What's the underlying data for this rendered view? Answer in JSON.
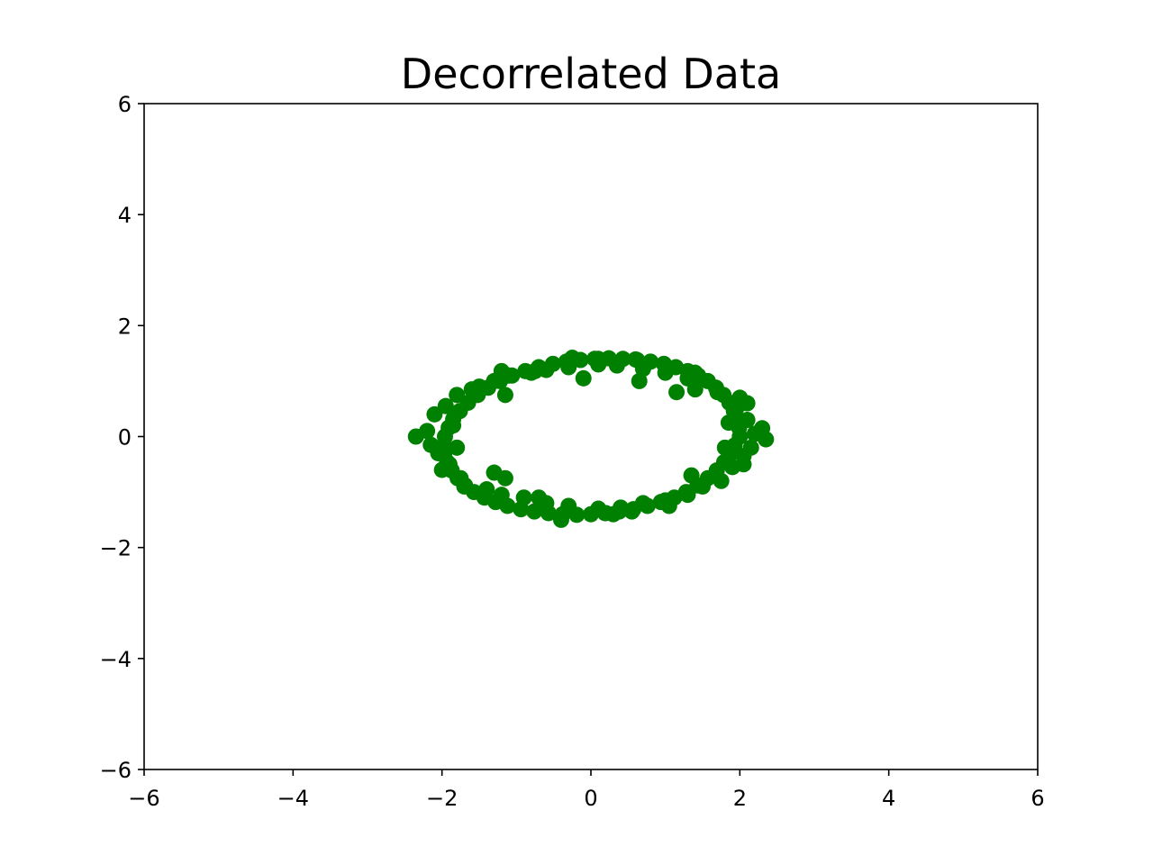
{
  "chart_data": {
    "type": "scatter",
    "title": "Decorrelated Data",
    "xlabel": "",
    "ylabel": "",
    "xlim": [
      -6,
      6
    ],
    "ylim": [
      -6,
      6
    ],
    "xticks": [
      -6,
      -4,
      -2,
      0,
      2,
      4,
      6
    ],
    "yticks": [
      -6,
      -4,
      -2,
      0,
      2,
      4,
      6
    ],
    "xtick_labels": [
      "−6",
      "−4",
      "−2",
      "0",
      "2",
      "4",
      "6"
    ],
    "ytick_labels": [
      "−6",
      "−4",
      "−2",
      "0",
      "2",
      "4",
      "6"
    ],
    "grid": false,
    "marker_color": "#008000",
    "series": [
      {
        "points": [
          [
            2.0,
            0.0
          ],
          [
            1.99,
            0.16
          ],
          [
            1.97,
            0.31
          ],
          [
            1.92,
            0.46
          ],
          [
            1.86,
            0.61
          ],
          [
            1.78,
            0.75
          ],
          [
            1.68,
            0.88
          ],
          [
            1.57,
            1.0
          ],
          [
            1.44,
            1.1
          ],
          [
            1.3,
            1.18
          ],
          [
            1.14,
            1.25
          ],
          [
            0.98,
            1.31
          ],
          [
            0.8,
            1.35
          ],
          [
            0.62,
            1.38
          ],
          [
            0.43,
            1.4
          ],
          [
            0.24,
            1.41
          ],
          [
            0.05,
            1.4
          ],
          [
            -0.14,
            1.38
          ],
          [
            -0.33,
            1.35
          ],
          [
            -0.51,
            1.31
          ],
          [
            -0.7,
            1.25
          ],
          [
            -0.88,
            1.18
          ],
          [
            -1.06,
            1.1
          ],
          [
            -1.22,
            1.0
          ],
          [
            -1.38,
            0.88
          ],
          [
            -1.52,
            0.75
          ],
          [
            -1.65,
            0.61
          ],
          [
            -1.76,
            0.46
          ],
          [
            -1.85,
            0.31
          ],
          [
            -1.91,
            0.16
          ],
          [
            -1.96,
            0.0
          ],
          [
            -1.98,
            -0.16
          ],
          [
            -1.97,
            -0.31
          ],
          [
            -1.93,
            -0.46
          ],
          [
            -1.87,
            -0.61
          ],
          [
            -1.79,
            -0.75
          ],
          [
            -1.69,
            -0.88
          ],
          [
            -1.57,
            -1.0
          ],
          [
            -1.43,
            -1.1
          ],
          [
            -1.28,
            -1.18
          ],
          [
            -1.12,
            -1.25
          ],
          [
            -0.94,
            -1.31
          ],
          [
            -0.76,
            -1.35
          ],
          [
            -0.57,
            -1.38
          ],
          [
            -0.38,
            -1.4
          ],
          [
            -0.19,
            -1.41
          ],
          [
            0.0,
            -1.4
          ],
          [
            0.19,
            -1.38
          ],
          [
            0.38,
            -1.35
          ],
          [
            0.57,
            -1.31
          ],
          [
            0.76,
            -1.25
          ],
          [
            0.94,
            -1.18
          ],
          [
            1.12,
            -1.1
          ],
          [
            1.28,
            -1.0
          ],
          [
            1.43,
            -0.88
          ],
          [
            1.57,
            -0.75
          ],
          [
            1.69,
            -0.61
          ],
          [
            1.79,
            -0.46
          ],
          [
            1.87,
            -0.31
          ],
          [
            1.93,
            -0.16
          ],
          [
            2.2,
            0.05
          ],
          [
            2.1,
            0.3
          ],
          [
            2.05,
            -0.35
          ],
          [
            2.15,
            -0.2
          ],
          [
            1.95,
            0.5
          ],
          [
            1.9,
            -0.55
          ],
          [
            2.3,
            0.15
          ],
          [
            2.35,
            -0.05
          ],
          [
            2.1,
            0.6
          ],
          [
            2.05,
            -0.5
          ],
          [
            1.7,
            0.8
          ],
          [
            1.75,
            -0.8
          ],
          [
            1.85,
            0.25
          ],
          [
            1.8,
            -0.2
          ],
          [
            2.0,
            0.7
          ],
          [
            -2.2,
            0.1
          ],
          [
            -2.1,
            0.4
          ],
          [
            -2.05,
            -0.3
          ],
          [
            -2.15,
            -0.15
          ],
          [
            -1.95,
            0.55
          ],
          [
            -1.9,
            -0.5
          ],
          [
            -2.35,
            0.0
          ],
          [
            -2.0,
            -0.6
          ],
          [
            -1.8,
            0.75
          ],
          [
            -1.75,
            -0.75
          ],
          [
            -1.85,
            0.2
          ],
          [
            -1.8,
            -0.2
          ],
          [
            -1.7,
            -0.9
          ],
          [
            -1.6,
            0.85
          ],
          [
            -1.5,
            0.9
          ],
          [
            -1.3,
            1.0
          ],
          [
            -1.1,
            1.1
          ],
          [
            -0.8,
            1.15
          ],
          [
            -0.6,
            1.2
          ],
          [
            -0.3,
            1.25
          ],
          [
            0.1,
            1.3
          ],
          [
            0.35,
            1.28
          ],
          [
            0.7,
            1.22
          ],
          [
            1.0,
            1.15
          ],
          [
            1.3,
            1.05
          ],
          [
            1.4,
            0.85
          ],
          [
            -0.1,
            1.05
          ],
          [
            0.65,
            1.0
          ],
          [
            -1.15,
            0.75
          ],
          [
            1.15,
            0.8
          ],
          [
            -0.25,
            1.42
          ],
          [
            0.1,
            1.4
          ],
          [
            0.6,
            1.39
          ],
          [
            1.4,
            1.15
          ],
          [
            -1.2,
            1.18
          ],
          [
            -0.75,
            1.18
          ],
          [
            -1.4,
            -0.95
          ],
          [
            -1.2,
            -1.05
          ],
          [
            -0.9,
            -1.1
          ],
          [
            -0.6,
            -1.2
          ],
          [
            -0.3,
            -1.25
          ],
          [
            0.1,
            -1.3
          ],
          [
            0.4,
            -1.28
          ],
          [
            0.7,
            -1.2
          ],
          [
            1.0,
            -1.15
          ],
          [
            1.3,
            -1.05
          ],
          [
            1.5,
            -0.9
          ],
          [
            -0.4,
            -1.5
          ],
          [
            0.2,
            -1.38
          ],
          [
            0.3,
            -1.4
          ],
          [
            0.55,
            -1.35
          ],
          [
            -0.7,
            -1.1
          ],
          [
            1.05,
            -1.25
          ],
          [
            -1.3,
            -0.65
          ],
          [
            1.35,
            -0.7
          ],
          [
            -1.15,
            -0.75
          ]
        ]
      }
    ]
  }
}
